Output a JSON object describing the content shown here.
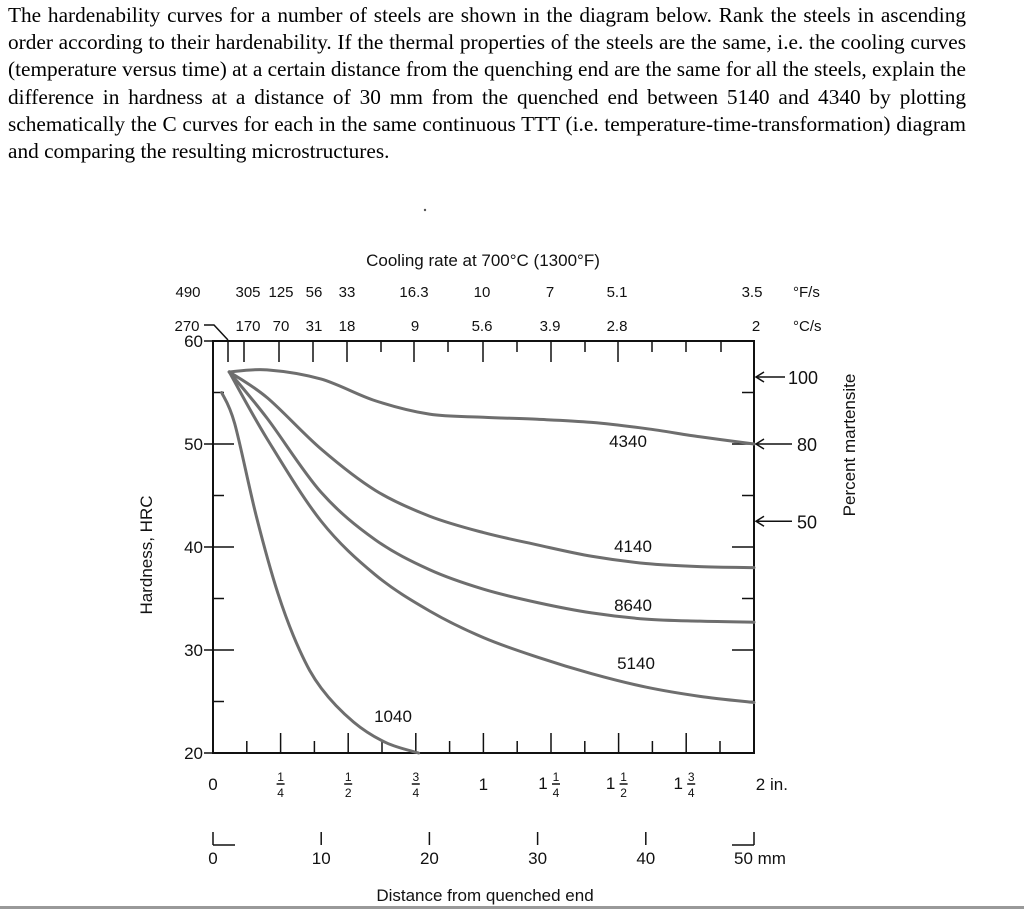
{
  "question": "The hardenability curves for a number of steels are shown in the diagram below. Rank the steels in ascending order according to their hardenability. If the thermal properties of the steels are the same, i.e. the cooling curves (temperature versus time) at a certain distance from the quenching end are the same for all the steels, explain the difference in hardness at a distance of 30 mm from the quenched end between 5140 and 4340 by plotting schematically the C curves for each in the same continuous TTT (i.e. temperature-time-transformation) diagram and comparing the resulting microstructures.",
  "chart_data": {
    "type": "line",
    "title": "Cooling rate at 700°C (1300°F)",
    "xlabel": "Distance from quenched end",
    "ylabel": "Hardness, HRC",
    "y2label": "Percent martensite",
    "xlim_mm": [
      0,
      50
    ],
    "ylim": [
      20,
      60
    ],
    "grid": false,
    "y_ticks": [
      "60",
      "50",
      "40",
      "30",
      "20"
    ],
    "x_ticks_in": [
      "0",
      "1/4",
      "1/2",
      "3/4",
      "1",
      "1 1/4",
      "1 1/2",
      "1 3/4",
      "2 in."
    ],
    "x_ticks_mm": [
      "0",
      "10",
      "20",
      "30",
      "40",
      "50 mm"
    ],
    "top_ticks_F": [
      "490",
      "305",
      "125",
      "56",
      "33",
      "16.3",
      "10",
      "7",
      "5.1",
      "3.5"
    ],
    "top_unit_F": "°F/s",
    "top_ticks_C": [
      "270",
      "170",
      "70",
      "31",
      "18",
      "9",
      "5.6",
      "3.9",
      "2.8",
      "2"
    ],
    "top_unit_C": "°C/s",
    "martensite_marks": [
      {
        "label": "100",
        "hrc": 56.5
      },
      {
        "label": "80",
        "hrc": 50
      },
      {
        "label": "50",
        "hrc": 42.5
      }
    ],
    "series": [
      {
        "name": "4340",
        "x_mm": [
          1.5,
          5,
          10,
          15,
          20,
          25,
          30,
          35,
          40,
          45,
          50
        ],
        "y": [
          57,
          57.2,
          56.3,
          54.2,
          52.9,
          52.6,
          52.4,
          52.1,
          51.5,
          50.7,
          50
        ]
      },
      {
        "name": "4140",
        "x_mm": [
          1.5,
          5,
          10,
          15,
          20,
          25,
          30,
          35,
          40,
          45,
          50
        ],
        "y": [
          57,
          54.5,
          49.5,
          45.5,
          43,
          41.4,
          40.2,
          39.1,
          38.4,
          38.1,
          38
        ]
      },
      {
        "name": "8640",
        "x_mm": [
          1.5,
          5,
          10,
          15,
          20,
          25,
          30,
          35,
          40,
          45,
          50
        ],
        "y": [
          57,
          52.5,
          45.3,
          40.7,
          37.8,
          35.9,
          34.6,
          33.6,
          33,
          32.8,
          32.7
        ]
      },
      {
        "name": "5140",
        "x_mm": [
          1.5,
          5,
          10,
          15,
          20,
          25,
          30,
          35,
          40,
          45,
          50
        ],
        "y": [
          57,
          50.5,
          42.5,
          37.3,
          33.8,
          31.2,
          29.3,
          27.7,
          26.4,
          25.5,
          24.9
        ]
      },
      {
        "name": "1040",
        "x_mm": [
          0.8,
          2,
          4,
          6,
          8,
          10,
          13,
          16,
          19
        ],
        "y": [
          55,
          52,
          43,
          35.5,
          30,
          26.3,
          23,
          21,
          20
        ]
      }
    ]
  }
}
